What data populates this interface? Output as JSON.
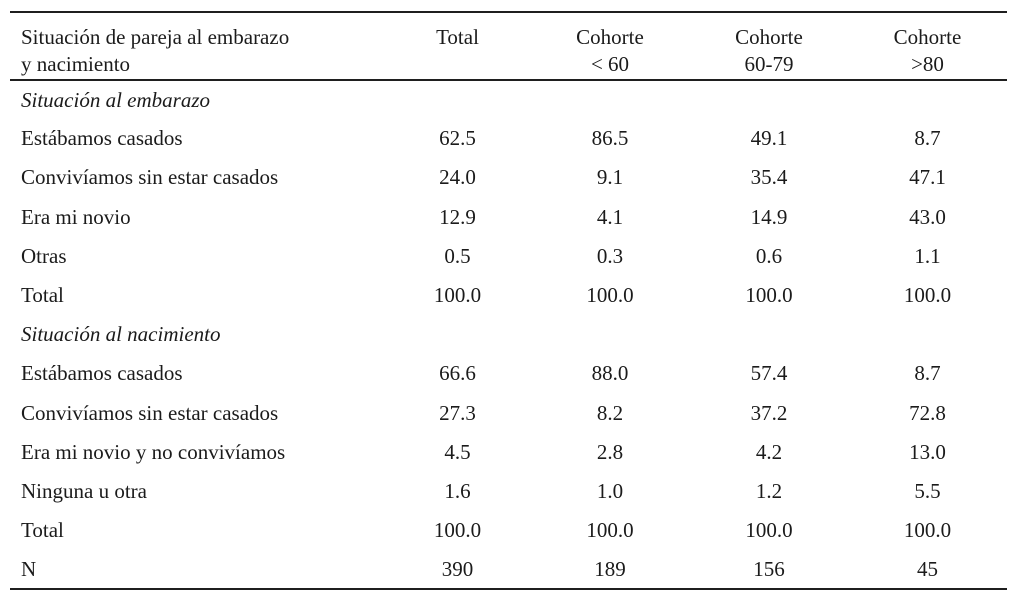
{
  "table": {
    "header": {
      "label_line1": "Situación de pareja al embarazo",
      "label_line2": "y nacimiento",
      "columns": [
        {
          "line1": "Total",
          "line2": ""
        },
        {
          "line1": "Cohorte",
          "line2": "< 60"
        },
        {
          "line1": "Cohorte",
          "line2": "60-79"
        },
        {
          "line1": "Cohorte",
          "line2": ">80"
        }
      ]
    },
    "rows": [
      {
        "label": "Situación al embarazo",
        "values": [
          "",
          "",
          "",
          ""
        ]
      },
      {
        "label": "Estábamos casados",
        "values": [
          "62.5",
          "86.5",
          "49.1",
          "8.7"
        ]
      },
      {
        "label": "Convivíamos sin estar casados",
        "values": [
          "24.0",
          "9.1",
          "35.4",
          "47.1"
        ]
      },
      {
        "label": "Era mi novio",
        "values": [
          "12.9",
          "4.1",
          "14.9",
          "43.0"
        ]
      },
      {
        "label": "Otras",
        "values": [
          "0.5",
          "0.3",
          "0.6",
          "1.1"
        ]
      },
      {
        "label": "Total",
        "values": [
          "100.0",
          "100.0",
          "100.0",
          "100.0"
        ]
      },
      {
        "label": "Situación al nacimiento",
        "values": [
          "",
          "",
          "",
          ""
        ]
      },
      {
        "label": "Estábamos casados",
        "values": [
          "66.6",
          "88.0",
          "57.4",
          "8.7"
        ]
      },
      {
        "label": "Convivíamos sin estar casados",
        "values": [
          "27.3",
          "8.2",
          "37.2",
          "72.8"
        ]
      },
      {
        "label": "Era mi novio y no convivíamos",
        "values": [
          "4.5",
          "2.8",
          "4.2",
          "13.0"
        ]
      },
      {
        "label": "Ninguna u otra",
        "values": [
          "1.6",
          "1.0",
          "1.2",
          "5.5"
        ]
      },
      {
        "label": "Total",
        "values": [
          "100.0",
          "100.0",
          "100.0",
          "100.0"
        ]
      },
      {
        "label": "N",
        "values": [
          "390",
          "189",
          "156",
          "45"
        ]
      }
    ]
  }
}
